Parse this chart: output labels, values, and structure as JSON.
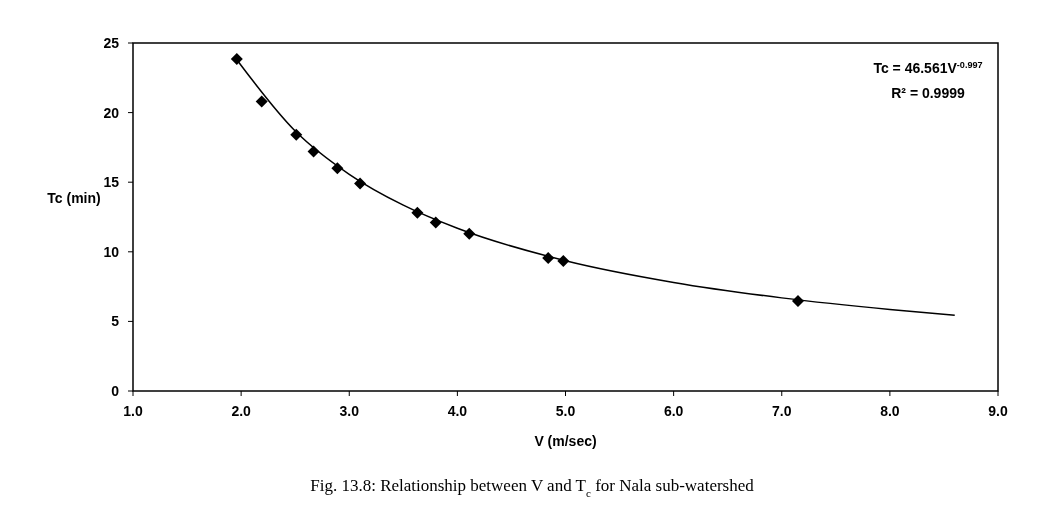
{
  "chart_data": {
    "type": "scatter",
    "xlabel": "V (m/sec)",
    "ylabel": "Tc (min)",
    "xlim": [
      1.0,
      9.0
    ],
    "xticks": [
      {
        "value": 1,
        "label": "1.0"
      },
      {
        "value": 2,
        "label": "2.0"
      },
      {
        "value": 3,
        "label": "3.0"
      },
      {
        "value": 4,
        "label": "4.0"
      },
      {
        "value": 5,
        "label": "5.0"
      },
      {
        "value": 6,
        "label": "6.0"
      },
      {
        "value": 7,
        "label": "7.0"
      },
      {
        "value": 8,
        "label": "8.0"
      },
      {
        "value": 9,
        "label": "9.0"
      }
    ],
    "ylim": [
      0,
      25
    ],
    "yticks": [
      0,
      5,
      10,
      15,
      20,
      25
    ],
    "grid": false,
    "marker": "diamond",
    "line_style": "solid",
    "series": [
      {
        "color": "#000000",
        "x": [
          1.96,
          2.19,
          2.51,
          2.67,
          2.89,
          3.1,
          3.63,
          3.8,
          4.11,
          4.84,
          4.98,
          7.15
        ],
        "values": [
          23.85,
          20.8,
          18.4,
          17.2,
          16.0,
          14.9,
          12.8,
          12.1,
          11.3,
          9.55,
          9.34,
          6.47
        ]
      },
      {
        "type": "line",
        "marker": "none",
        "color": "#000000",
        "x": [
          1.96,
          2.5,
          3,
          3.5,
          4,
          5,
          6,
          7,
          8,
          8.6
        ],
        "values": [
          23.8,
          18.68,
          15.57,
          13.35,
          11.69,
          9.36,
          7.8,
          6.69,
          5.86,
          5.45
        ]
      }
    ],
    "annotations": [
      "Tc = 46.561V$^{-0.997}$",
      "R² = 0.9999",
      "Fig. 13.8: Relationship between V and T$_{c}$ for Nala sub-watershed"
    ]
  }
}
